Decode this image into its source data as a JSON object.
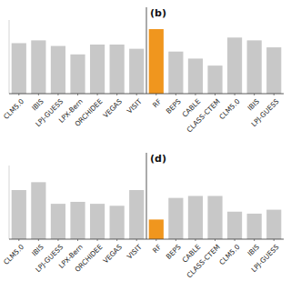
{
  "chart_data": [
    {
      "type": "bar",
      "title": "(b)",
      "categories": [
        "CLM5.0",
        "IBIS",
        "LPJ-GUESS",
        "LPX-Bern",
        "ORCHIDEE",
        "VEGAS",
        "VISIT",
        "RF",
        "BEPS",
        "CABLE",
        "CLASS-CTEM",
        "CLM5.0",
        "IBIS",
        "LPJ-GUESS"
      ],
      "values": [
        0.72,
        0.76,
        0.68,
        0.56,
        0.7,
        0.7,
        0.64,
        0.92,
        0.6,
        0.5,
        0.4,
        0.8,
        0.76,
        0.66
      ],
      "colors": [
        "#c8c8c8",
        "#c8c8c8",
        "#c8c8c8",
        "#c8c8c8",
        "#c8c8c8",
        "#c8c8c8",
        "#c8c8c8",
        "#f0961e",
        "#c8c8c8",
        "#c8c8c8",
        "#c8c8c8",
        "#c8c8c8",
        "#c8c8c8",
        "#c8c8c8"
      ],
      "ylim": [
        0,
        1.05
      ],
      "tick_labels": "x",
      "grid": false
    },
    {
      "type": "bar",
      "title": "(d)",
      "categories": [
        "CLM5.0",
        "IBIS",
        "LPJ-GUESS",
        "LPX-Bern",
        "ORCHIDEE",
        "VEGAS",
        "VISIT",
        "RF",
        "BEPS",
        "CABLE",
        "CLASS-CTEM",
        "CLM5.0",
        "IBIS",
        "LPJ-GUESS"
      ],
      "values": [
        0.5,
        0.58,
        0.36,
        0.38,
        0.36,
        0.34,
        0.5,
        0.2,
        0.42,
        0.44,
        0.44,
        0.28,
        0.26,
        0.3
      ],
      "colors": [
        "#c8c8c8",
        "#c8c8c8",
        "#c8c8c8",
        "#c8c8c8",
        "#c8c8c8",
        "#c8c8c8",
        "#c8c8c8",
        "#f0961e",
        "#c8c8c8",
        "#c8c8c8",
        "#c8c8c8",
        "#c8c8c8",
        "#c8c8c8",
        "#c8c8c8"
      ],
      "ylim": [
        0,
        0.75
      ],
      "tick_labels": "x",
      "grid": false
    }
  ]
}
